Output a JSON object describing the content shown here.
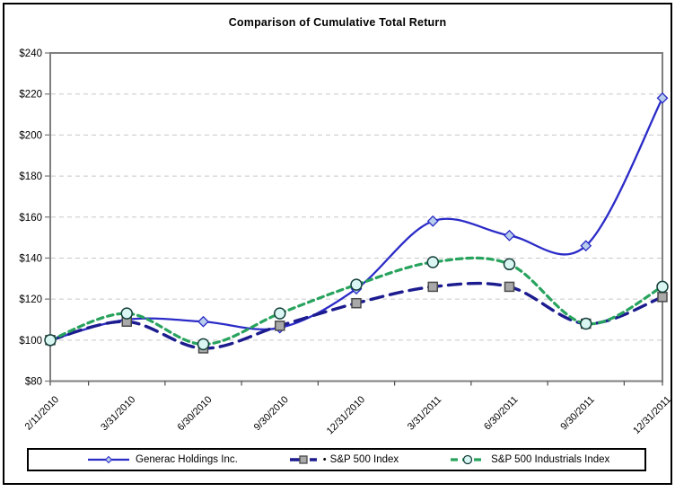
{
  "chart_data": {
    "type": "line",
    "title": "Comparison of Cumulative Total Return",
    "categories": [
      "2/11/2010",
      "3/31/2010",
      "6/30/2010",
      "9/30/2010",
      "12/31/2010",
      "3/31/2011",
      "6/30/2011",
      "9/30/2011",
      "12/31/2011"
    ],
    "series": [
      {
        "name": "Generac Holdings Inc.",
        "values": [
          100,
          110,
          109,
          106,
          125,
          158,
          151,
          146,
          218
        ],
        "color": "#2B2BC8",
        "marker": "diamond",
        "marker_fill": "#B7CDE9",
        "line_style": "solid"
      },
      {
        "name": "S&P 500 Index",
        "legend_bullet": "•",
        "values": [
          100,
          109,
          96,
          107,
          118,
          126,
          126,
          108,
          121
        ],
        "color": "#1C1C8F",
        "marker": "square",
        "marker_fill": "#A9A9A9",
        "marker_stroke": "#4A4A4A",
        "line_style": "long-dash"
      },
      {
        "name": "S&P 500 Industrials Index",
        "values": [
          100,
          113,
          98,
          113,
          127,
          138,
          137,
          108,
          126
        ],
        "color": "#28A35E",
        "marker": "circle",
        "marker_fill": "#D9F6F3",
        "marker_stroke": "#16403B",
        "line_style": "short-dash"
      }
    ],
    "y_tick_labels": [
      "$240",
      "$220",
      "$200",
      "$180",
      "$160",
      "$140",
      "$120",
      "$100",
      "$80"
    ],
    "y_tick_values": [
      240,
      220,
      200,
      180,
      160,
      140,
      120,
      100,
      80
    ],
    "ylim": [
      80,
      240
    ],
    "grid": true,
    "legend_position": "bottom",
    "colors": {
      "grid": "#C8C8C8",
      "plot_border": "#7F7F7F",
      "tick": "#4D4D4D",
      "text": "#000000",
      "background": "#FFFFFF",
      "frame_border": "#000000"
    }
  }
}
